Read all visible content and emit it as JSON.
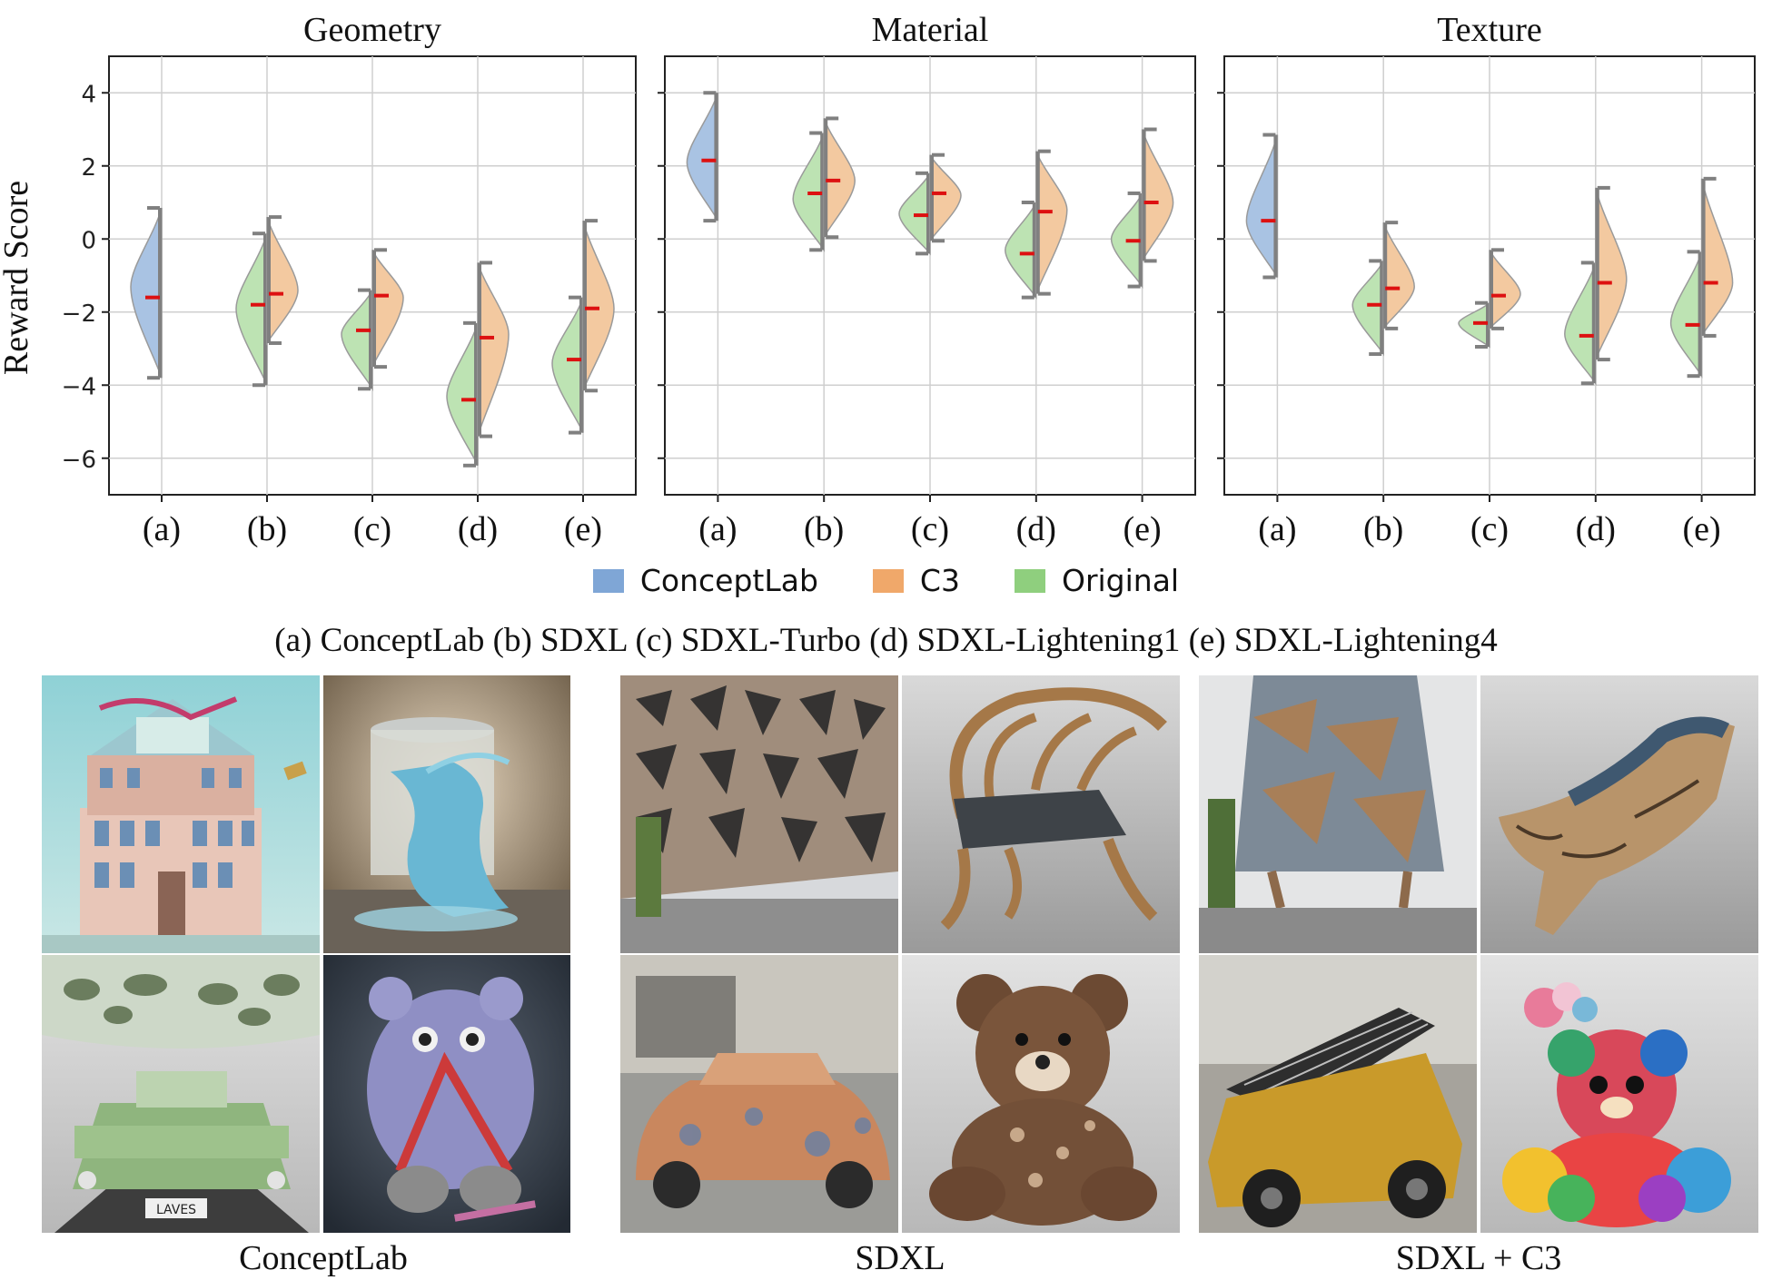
{
  "colors": {
    "conceptlab": "#a9c3e3",
    "c3": "#f3c9a0",
    "original": "#bde3b3",
    "mean_marker": "#dd1111",
    "whisker": "#808080"
  },
  "legend": [
    {
      "label": "ConceptLab",
      "color": "#7fa6d6"
    },
    {
      "label": "C3",
      "color": "#f0a86a"
    },
    {
      "label": "Original",
      "color": "#8fcf7e"
    }
  ],
  "methods_caption": "(a) ConceptLab (b) SDXL (c) SDXL-Turbo (d) SDXL-Lightening1 (e) SDXL-Lightening4",
  "chart_data": [
    {
      "type": "violin",
      "title": "Geometry",
      "ylabel": "Reward Score",
      "ylim": [
        -7,
        5
      ],
      "yticks": [
        4,
        2,
        0,
        -2,
        -4,
        -6
      ],
      "categories": [
        "(a)",
        "(b)",
        "(c)",
        "(d)",
        "(e)"
      ],
      "series": [
        {
          "name": "ConceptLab",
          "values": [
            {
              "cat": 0,
              "min": -3.8,
              "max": 0.85,
              "mean": -1.6,
              "mode": -1.3
            }
          ]
        },
        {
          "name": "Original",
          "values": [
            {
              "cat": 1,
              "min": -4.0,
              "max": 0.15,
              "mean": -1.8,
              "mode": -1.9
            },
            {
              "cat": 2,
              "min": -4.1,
              "max": -1.4,
              "mean": -2.5,
              "mode": -2.6
            },
            {
              "cat": 3,
              "min": -6.2,
              "max": -2.3,
              "mean": -4.4,
              "mode": -4.3
            },
            {
              "cat": 4,
              "min": -5.3,
              "max": -1.6,
              "mean": -3.3,
              "mode": -3.4
            }
          ]
        },
        {
          "name": "C3",
          "values": [
            {
              "cat": 1,
              "min": -2.85,
              "max": 0.6,
              "mean": -1.5,
              "mode": -1.4
            },
            {
              "cat": 2,
              "min": -3.5,
              "max": -0.3,
              "mean": -1.55,
              "mode": -1.6
            },
            {
              "cat": 3,
              "min": -5.4,
              "max": -0.65,
              "mean": -2.7,
              "mode": -2.6
            },
            {
              "cat": 4,
              "min": -4.15,
              "max": 0.5,
              "mean": -1.9,
              "mode": -1.9
            }
          ]
        }
      ]
    },
    {
      "type": "violin",
      "title": "Material",
      "ylabel": "",
      "ylim": [
        -7,
        5
      ],
      "yticks": [
        4,
        2,
        0,
        -2,
        -4,
        -6
      ],
      "categories": [
        "(a)",
        "(b)",
        "(c)",
        "(d)",
        "(e)"
      ],
      "series": [
        {
          "name": "ConceptLab",
          "values": [
            {
              "cat": 0,
              "min": 0.5,
              "max": 4.0,
              "mean": 2.15,
              "mode": 2.1
            }
          ]
        },
        {
          "name": "Original",
          "values": [
            {
              "cat": 1,
              "min": -0.3,
              "max": 2.9,
              "mean": 1.25,
              "mode": 1.1
            },
            {
              "cat": 2,
              "min": -0.4,
              "max": 1.8,
              "mean": 0.65,
              "mode": 0.7
            },
            {
              "cat": 3,
              "min": -1.6,
              "max": 1.0,
              "mean": -0.4,
              "mode": -0.3
            },
            {
              "cat": 4,
              "min": -1.3,
              "max": 1.25,
              "mean": -0.05,
              "mode": 0.0
            }
          ]
        },
        {
          "name": "C3",
          "values": [
            {
              "cat": 1,
              "min": 0.05,
              "max": 3.3,
              "mean": 1.6,
              "mode": 1.6
            },
            {
              "cat": 2,
              "min": -0.05,
              "max": 2.3,
              "mean": 1.25,
              "mode": 1.2
            },
            {
              "cat": 3,
              "min": -1.5,
              "max": 2.4,
              "mean": 0.75,
              "mode": 0.8
            },
            {
              "cat": 4,
              "min": -0.6,
              "max": 3.0,
              "mean": 1.0,
              "mode": 1.0
            }
          ]
        }
      ]
    },
    {
      "type": "violin",
      "title": "Texture",
      "ylabel": "",
      "ylim": [
        -7,
        5
      ],
      "yticks": [
        4,
        2,
        0,
        -2,
        -4,
        -6
      ],
      "categories": [
        "(a)",
        "(b)",
        "(c)",
        "(d)",
        "(e)"
      ],
      "series": [
        {
          "name": "ConceptLab",
          "values": [
            {
              "cat": 0,
              "min": -1.05,
              "max": 2.85,
              "mean": 0.5,
              "mode": 0.5
            }
          ]
        },
        {
          "name": "Original",
          "values": [
            {
              "cat": 1,
              "min": -3.15,
              "max": -0.6,
              "mean": -1.8,
              "mode": -1.8
            },
            {
              "cat": 2,
              "min": -2.95,
              "max": -1.75,
              "mean": -2.3,
              "mode": -2.3
            },
            {
              "cat": 3,
              "min": -3.95,
              "max": -0.65,
              "mean": -2.65,
              "mode": -2.6
            },
            {
              "cat": 4,
              "min": -3.75,
              "max": -0.35,
              "mean": -2.35,
              "mode": -2.3
            }
          ]
        },
        {
          "name": "C3",
          "values": [
            {
              "cat": 1,
              "min": -2.45,
              "max": 0.45,
              "mean": -1.35,
              "mode": -1.3
            },
            {
              "cat": 2,
              "min": -2.45,
              "max": -0.3,
              "mean": -1.55,
              "mode": -1.5
            },
            {
              "cat": 3,
              "min": -3.3,
              "max": 1.4,
              "mean": -1.2,
              "mode": -1.1
            },
            {
              "cat": 4,
              "min": -2.65,
              "max": 1.65,
              "mean": -1.2,
              "mode": -1.2
            }
          ]
        }
      ]
    }
  ],
  "image_groups": [
    {
      "label": "ConceptLab",
      "tiles": [
        "building-tile",
        "glass-tile",
        "car-tile",
        "teddy-tile"
      ]
    },
    {
      "label": "SDXL",
      "tiles": [
        "building-tile",
        "chair-tile",
        "car-tile",
        "teddy-tile"
      ]
    },
    {
      "label": "SDXL + C3",
      "tiles": [
        "building-tile",
        "chair-tile",
        "car-tile",
        "teddy-tile"
      ]
    }
  ],
  "plate_text": "LAVES"
}
